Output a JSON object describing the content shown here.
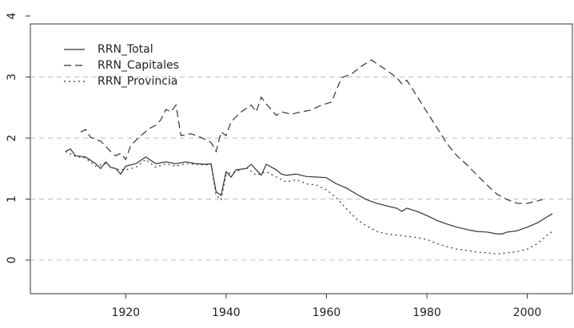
{
  "chart_data": {
    "type": "line",
    "xlim": [
      1901,
      2009
    ],
    "xticks": [
      1920,
      1940,
      1960,
      1980,
      2000
    ],
    "ylim": [
      -0.55,
      3.87
    ],
    "yticks": [
      0,
      1,
      2,
      3,
      4
    ],
    "grid": true,
    "legend": "top-left",
    "series": [
      {
        "name": "RRN_Total",
        "color": "#333333",
        "dash": "solid",
        "x": [
          1908,
          1909,
          1910,
          1912,
          1914,
          1915,
          1916,
          1917,
          1918,
          1919,
          1920,
          1922,
          1924,
          1926,
          1928,
          1930,
          1932,
          1934,
          1936,
          1937,
          1938,
          1939,
          1940,
          1941,
          1942,
          1944,
          1945,
          1946,
          1947,
          1948,
          1950,
          1951,
          1952,
          1954,
          1956,
          1958,
          1960,
          1962,
          1964,
          1966,
          1968,
          1970,
          1972,
          1974,
          1975,
          1976,
          1978,
          1980,
          1982,
          1984,
          1986,
          1988,
          1990,
          1992,
          1994,
          1995,
          1996,
          1998,
          2000,
          2002,
          2004,
          2005
        ],
        "values": [
          1.78,
          1.82,
          1.71,
          1.69,
          1.58,
          1.5,
          1.61,
          1.52,
          1.5,
          1.41,
          1.54,
          1.58,
          1.69,
          1.58,
          1.61,
          1.58,
          1.61,
          1.58,
          1.57,
          1.58,
          1.12,
          1.06,
          1.45,
          1.36,
          1.48,
          1.5,
          1.57,
          1.48,
          1.39,
          1.57,
          1.48,
          1.41,
          1.39,
          1.41,
          1.37,
          1.36,
          1.35,
          1.25,
          1.18,
          1.08,
          0.99,
          0.93,
          0.89,
          0.85,
          0.8,
          0.85,
          0.8,
          0.73,
          0.65,
          0.59,
          0.54,
          0.5,
          0.47,
          0.46,
          0.43,
          0.43,
          0.46,
          0.48,
          0.54,
          0.61,
          0.71,
          0.76
        ]
      },
      {
        "name": "RRN_Capitales",
        "color": "#333333",
        "dash": "dashed",
        "x": [
          1911,
          1912,
          1913,
          1915,
          1917,
          1918,
          1919,
          1920,
          1921,
          1923,
          1925,
          1926,
          1927,
          1928,
          1929,
          1930,
          1931,
          1933,
          1935,
          1937,
          1938,
          1939,
          1940,
          1941,
          1943,
          1945,
          1946,
          1947,
          1948,
          1950,
          1951,
          1953,
          1955,
          1957,
          1959,
          1961,
          1963,
          1965,
          1967,
          1969,
          1970,
          1972,
          1974,
          1975,
          1976,
          1978,
          1980,
          1982,
          1984,
          1986,
          1988,
          1990,
          1992,
          1994,
          1996,
          1998,
          2000,
          2002,
          2003
        ],
        "values": [
          2.1,
          2.14,
          2.01,
          1.95,
          1.78,
          1.71,
          1.75,
          1.65,
          1.88,
          2.04,
          2.17,
          2.21,
          2.3,
          2.47,
          2.43,
          2.54,
          2.04,
          2.07,
          2.01,
          1.93,
          1.78,
          2.1,
          2.04,
          2.27,
          2.43,
          2.54,
          2.43,
          2.67,
          2.56,
          2.37,
          2.43,
          2.39,
          2.43,
          2.46,
          2.54,
          2.59,
          2.99,
          3.05,
          3.18,
          3.28,
          3.22,
          3.11,
          2.99,
          2.89,
          2.95,
          2.69,
          2.43,
          2.17,
          1.91,
          1.71,
          1.56,
          1.39,
          1.23,
          1.08,
          0.99,
          0.93,
          0.93,
          0.97,
          0.99
        ]
      },
      {
        "name": "RRN_Provincia",
        "color": "#333333",
        "dash": "dotted",
        "x": [
          1908,
          1910,
          1912,
          1914,
          1916,
          1918,
          1920,
          1922,
          1924,
          1926,
          1928,
          1930,
          1932,
          1934,
          1936,
          1937,
          1938,
          1939,
          1940,
          1942,
          1944,
          1946,
          1948,
          1950,
          1952,
          1954,
          1956,
          1958,
          1960,
          1962,
          1964,
          1966,
          1968,
          1970,
          1972,
          1974,
          1976,
          1978,
          1980,
          1982,
          1984,
          1986,
          1988,
          1990,
          1992,
          1994,
          1996,
          1998,
          2000,
          2002,
          2004,
          2005
        ],
        "values": [
          1.78,
          1.7,
          1.67,
          1.54,
          1.58,
          1.49,
          1.48,
          1.52,
          1.65,
          1.52,
          1.58,
          1.54,
          1.58,
          1.57,
          1.56,
          1.57,
          1.06,
          0.99,
          1.41,
          1.45,
          1.52,
          1.39,
          1.45,
          1.36,
          1.28,
          1.32,
          1.25,
          1.23,
          1.15,
          1.02,
          0.84,
          0.67,
          0.56,
          0.47,
          0.43,
          0.41,
          0.39,
          0.37,
          0.34,
          0.27,
          0.22,
          0.18,
          0.16,
          0.13,
          0.12,
          0.1,
          0.12,
          0.14,
          0.18,
          0.27,
          0.41,
          0.47
        ]
      }
    ]
  }
}
